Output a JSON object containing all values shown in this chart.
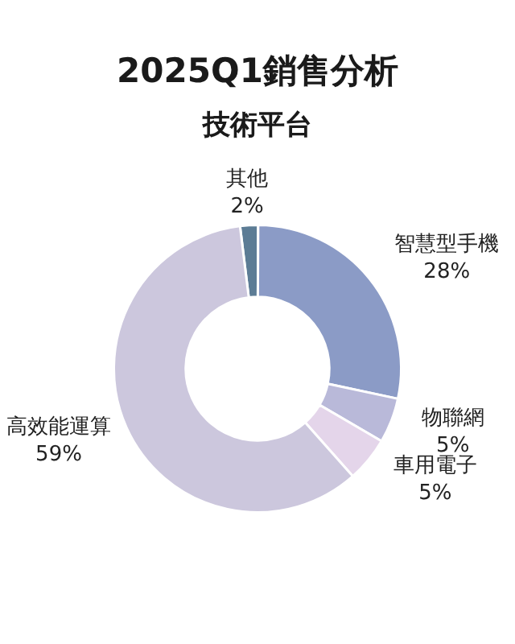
{
  "chart_data": {
    "type": "donut",
    "title": "2025Q1銷售分析",
    "subtitle": "技術平台",
    "categories": [
      "其他",
      "智慧型手機",
      "物聯網",
      "車用電子",
      "高效能運算"
    ],
    "values": [
      2,
      28,
      5,
      5,
      59
    ],
    "value_labels": [
      "2%",
      "28%",
      "5%",
      "5%",
      "59%"
    ],
    "colors": [
      "#5c7c95",
      "#8b9bc6",
      "#b9b9d9",
      "#e4d5ea",
      "#ccc7dd"
    ],
    "legend": false
  }
}
